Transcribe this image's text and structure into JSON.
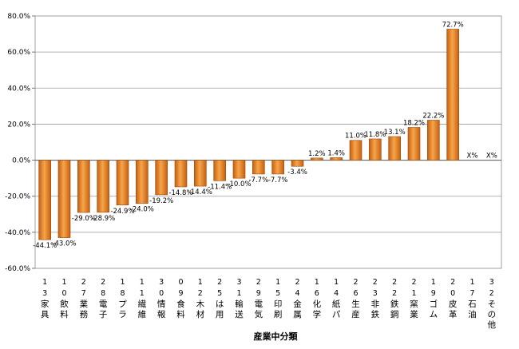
{
  "chart_data": {
    "type": "bar",
    "title": "",
    "xlabel": "産業中分類",
    "ylabel": "",
    "ylim": [
      -60,
      80
    ],
    "ytick_step": 20,
    "ytick_labels": [
      "80.0%",
      "60.0%",
      "40.0%",
      "20.0%",
      "0.0%",
      "-20.0%",
      "-40.0%",
      "-60.0%"
    ],
    "grid": true,
    "legend": "none",
    "bar_color": "#E8892A",
    "codes": [
      "13",
      "10",
      "27",
      "28",
      "18",
      "11",
      "30",
      "09",
      "12",
      "25",
      "31",
      "29",
      "15",
      "24",
      "16",
      "14",
      "26",
      "23",
      "22",
      "21",
      "19",
      "20",
      "17",
      "32"
    ],
    "categories": [
      "家具",
      "飲料",
      "業務",
      "電子",
      "プラ",
      "繊維",
      "情報",
      "食料",
      "木材",
      "は用",
      "輸送",
      "電気",
      "印刷",
      "金属",
      "化学",
      "紙パ",
      "生産",
      "非鉄",
      "鉄鋼",
      "窯業",
      "ゴム",
      "皮革",
      "石油",
      "その他"
    ],
    "values": [
      -44.1,
      -43.0,
      -29.0,
      -28.9,
      -24.9,
      -24.0,
      -19.2,
      -14.8,
      -14.4,
      -11.4,
      -10.0,
      -7.7,
      -7.7,
      -3.4,
      1.2,
      1.4,
      11.0,
      11.8,
      13.1,
      18.2,
      22.2,
      72.7,
      null,
      null
    ],
    "data_labels": [
      "-44.1%",
      "-43.0%",
      "-29.0%",
      "-28.9%",
      "-24.9%",
      "-24.0%",
      "-19.2%",
      "-14.8%",
      "-14.4%",
      "-11.4%",
      "-10.0%",
      "-7.7%",
      "-7.7%",
      "-3.4%",
      "1.2%",
      "1.4%",
      "11.0%",
      "11.8%",
      "13.1%",
      "18.2%",
      "22.2%",
      "72.7%",
      "X%",
      "X%"
    ]
  }
}
